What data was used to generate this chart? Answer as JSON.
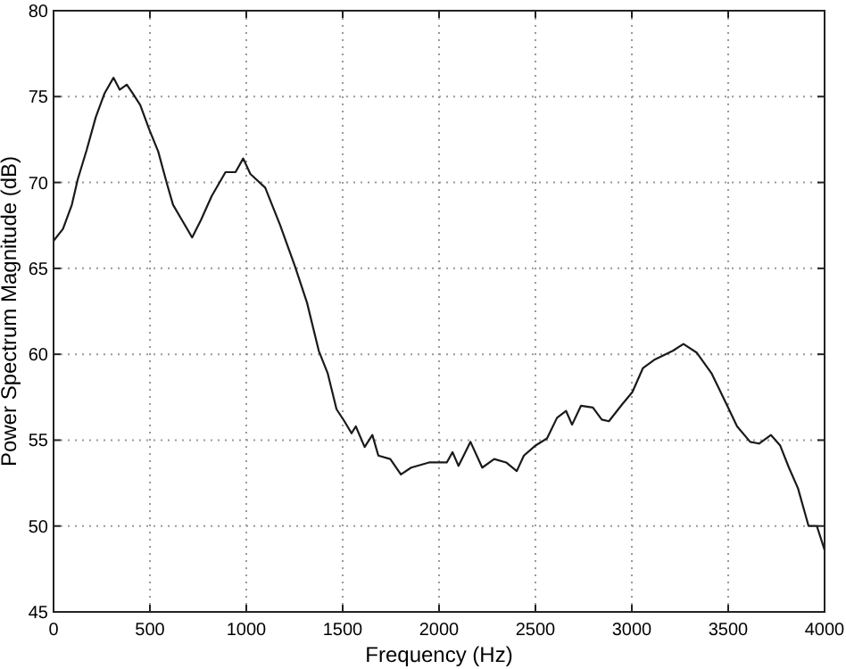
{
  "chart_data": {
    "type": "line",
    "xlabel": "Frequency (Hz)",
    "ylabel": "Power Spectrum Magnitude (dB)",
    "xlim": [
      0,
      4000
    ],
    "ylim": [
      45,
      80
    ],
    "xticks": [
      0,
      500,
      1000,
      1500,
      2000,
      2500,
      3000,
      3500,
      4000
    ],
    "yticks": [
      45,
      50,
      55,
      60,
      65,
      70,
      75,
      80
    ],
    "grid": true,
    "line_style": "solid",
    "series": [
      {
        "color": "#1a1a1a",
        "x": [
          0,
          49,
          95,
          126,
          172,
          219,
          265,
          311,
          343,
          380,
          410,
          450,
          496,
          543,
          589,
          620,
          667,
          719,
          764,
          820,
          892,
          944,
          984,
          1021,
          1098,
          1176,
          1253,
          1315,
          1376,
          1422,
          1468,
          1509,
          1546,
          1568,
          1614,
          1654,
          1685,
          1747,
          1802,
          1855,
          1948,
          2040,
          2070,
          2101,
          2163,
          2224,
          2286,
          2348,
          2403,
          2440,
          2502,
          2560,
          2612,
          2659,
          2690,
          2736,
          2798,
          2844,
          2881,
          2951,
          3003,
          3058,
          3120,
          3213,
          3268,
          3336,
          3413,
          3491,
          3546,
          3614,
          3660,
          3722,
          3769,
          3815,
          3862,
          3892,
          3917,
          3960,
          4000
        ],
        "values": [
          66.6,
          67.3,
          68.7,
          70.2,
          71.9,
          73.8,
          75.2,
          76.1,
          75.4,
          75.7,
          75.2,
          74.5,
          73.1,
          71.8,
          69.9,
          68.7,
          67.8,
          66.8,
          67.8,
          69.2,
          70.6,
          70.6,
          71.4,
          70.5,
          69.7,
          67.5,
          65.1,
          63.0,
          60.2,
          58.9,
          56.8,
          56.1,
          55.4,
          55.8,
          54.6,
          55.3,
          54.1,
          53.9,
          53.0,
          53.4,
          53.7,
          53.7,
          54.3,
          53.5,
          54.9,
          53.4,
          53.9,
          53.7,
          53.2,
          54.1,
          54.7,
          55.1,
          56.3,
          56.7,
          55.9,
          57.0,
          56.9,
          56.2,
          56.1,
          57.1,
          57.8,
          59.2,
          59.7,
          60.2,
          60.6,
          60.1,
          58.9,
          57.1,
          55.8,
          54.9,
          54.8,
          55.3,
          54.7,
          53.4,
          52.2,
          51.0,
          50.0,
          50.0,
          48.6
        ]
      }
    ]
  }
}
